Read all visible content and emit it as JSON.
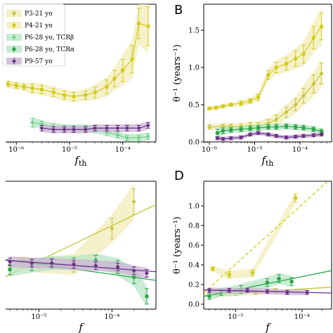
{
  "colors": {
    "P3": "#c4c436",
    "P4": "#d2cc18",
    "P6b": "#6ccf8a",
    "P6a": "#2aa64a",
    "P9": "#6a2d86",
    "band_yellow": "#f1ecb8",
    "band_green": "#b9e6c6",
    "band_purple": "#c9b3d4"
  },
  "panels": {
    "B": {
      "letter": "B"
    },
    "D": {
      "letter": "D"
    }
  },
  "legend": [
    "P3-21 yo",
    "P4-21 yo",
    "P6-28 yo, TCRβ",
    "P6-28 yo, TCRα",
    "P9-57 yo"
  ],
  "chart_data": [
    {
      "id": "A",
      "type": "line",
      "xlabel": "f_th",
      "xscale": "log",
      "xlim": [
        6.3e-07,
        0.00042
      ],
      "ylim": [
        0,
        1
      ],
      "x_tick_labels": [
        "10⁻⁶",
        "10⁻⁵",
        "10⁻⁴"
      ],
      "series": [
        {
          "name": "P4-21 yo",
          "x": [
            7e-07,
            1e-06,
            1.4e-06,
            2e-06,
            3e-06,
            5e-06,
            8e-06,
            1.2e-05,
            2e-05,
            3e-05,
            5e-05,
            7e-05,
            0.0001,
            0.00015,
            0.0002,
            0.0003
          ],
          "y": [
            0.42,
            0.41,
            0.4,
            0.39,
            0.38,
            0.36,
            0.34,
            0.33,
            0.34,
            0.36,
            0.4,
            0.46,
            0.52,
            0.6,
            0.86,
            0.84
          ],
          "err": [
            0.02,
            0.02,
            0.02,
            0.03,
            0.03,
            0.03,
            0.03,
            0.03,
            0.03,
            0.04,
            0.05,
            0.06,
            0.08,
            0.1,
            0.11,
            0.14
          ]
        },
        {
          "name": "P6-28 yo, TCRβ",
          "x": [
            2e-06,
            3e-06,
            5e-06,
            8e-06,
            1.2e-05,
            2e-05,
            3e-05,
            5e-05,
            8e-05,
            0.00012,
            0.0002,
            0.0003
          ],
          "y": [
            0.14,
            0.13,
            0.11,
            0.1,
            0.1,
            0.1,
            0.09,
            0.07,
            0.05,
            0.03,
            0.03,
            0.04
          ],
          "err": [
            0.03,
            0.02,
            0.02,
            0.02,
            0.02,
            0.02,
            0.02,
            0.02,
            0.02,
            0.02,
            0.02,
            0.02
          ]
        },
        {
          "name": "P9-57 yo",
          "x": [
            3e-06,
            5e-06,
            8e-06,
            1.2e-05,
            2e-05,
            3e-05,
            5e-05,
            8e-05,
            0.00012,
            0.0002,
            0.0003
          ],
          "y": [
            0.1,
            0.09,
            0.09,
            0.09,
            0.09,
            0.1,
            0.1,
            0.1,
            0.1,
            0.1,
            0.12
          ],
          "err": [
            0.02,
            0.02,
            0.02,
            0.02,
            0.02,
            0.02,
            0.02,
            0.02,
            0.02,
            0.02,
            0.02
          ]
        }
      ]
    },
    {
      "id": "B",
      "type": "line",
      "xlabel": "f_th",
      "ylabel": "θ⁻¹ (years⁻¹)",
      "xscale": "log",
      "xlim": [
        7.5e-07,
        0.0005
      ],
      "ylim": [
        0,
        1.85
      ],
      "x_tick_labels": [
        "10⁻⁶",
        "10⁻⁵",
        "10⁻⁴"
      ],
      "y_ticks": [
        0.0,
        0.5,
        1.0,
        1.5
      ],
      "y_tick_labels": [
        "0.0",
        "0.5",
        "1.0",
        "1.5"
      ],
      "series": [
        {
          "name": "P4-21 yo",
          "x": [
            1e-06,
            1.4e-06,
            2e-06,
            3e-06,
            5e-06,
            8e-06,
            1.2e-05,
            2e-05,
            3e-05,
            5e-05,
            8e-05,
            0.00012,
            0.0002,
            0.0003
          ],
          "y": [
            0.45,
            0.46,
            0.48,
            0.5,
            0.52,
            0.55,
            0.6,
            0.9,
            1.0,
            1.05,
            1.12,
            1.18,
            1.4,
            1.55
          ],
          "err": [
            0.02,
            0.02,
            0.02,
            0.02,
            0.03,
            0.03,
            0.04,
            0.06,
            0.07,
            0.08,
            0.1,
            0.12,
            0.15,
            0.18
          ]
        },
        {
          "name": "P3-21 yo",
          "x": [
            1e-06,
            2e-06,
            3e-06,
            5e-06,
            8e-06,
            1.2e-05,
            2e-05,
            3e-05,
            5e-05,
            8e-05,
            0.00012,
            0.0002,
            0.0003
          ],
          "y": [
            0.2,
            0.21,
            0.21,
            0.21,
            0.22,
            0.22,
            0.25,
            0.3,
            0.4,
            0.5,
            0.62,
            0.78,
            0.92
          ],
          "err": [
            0.03,
            0.03,
            0.03,
            0.03,
            0.04,
            0.04,
            0.05,
            0.06,
            0.07,
            0.08,
            0.1,
            0.12,
            0.14
          ]
        },
        {
          "name": "P6-28 yo, TCRα",
          "x": [
            1.5e-06,
            2e-06,
            3e-06,
            5e-06,
            8e-06,
            1.2e-05,
            2e-05,
            3e-05,
            5e-05,
            8e-05,
            0.00012,
            0.0002,
            0.0003
          ],
          "y": [
            0.12,
            0.15,
            0.16,
            0.17,
            0.18,
            0.19,
            0.2,
            0.2,
            0.21,
            0.2,
            0.19,
            0.17,
            0.14
          ],
          "err": [
            0.05,
            0.04,
            0.03,
            0.03,
            0.03,
            0.03,
            0.03,
            0.03,
            0.03,
            0.03,
            0.03,
            0.03,
            0.03
          ]
        },
        {
          "name": "P9-57 yo",
          "x": [
            1.5e-06,
            2e-06,
            3e-06,
            5e-06,
            8e-06,
            1.2e-05,
            2e-05,
            3e-05,
            5e-05,
            8e-05,
            0.00012,
            0.0002,
            0.0003
          ],
          "y": [
            0.05,
            0.04,
            0.05,
            0.06,
            0.1,
            0.12,
            0.1,
            0.08,
            0.06,
            0.07,
            0.08,
            0.09,
            0.1
          ],
          "err": [
            0.02,
            0.02,
            0.02,
            0.02,
            0.02,
            0.02,
            0.02,
            0.02,
            0.02,
            0.02,
            0.02,
            0.02,
            0.02
          ]
        }
      ]
    },
    {
      "id": "C",
      "type": "scatter",
      "xlabel": "f",
      "xscale": "log",
      "xlim": [
        3.5e-06,
        0.0004
      ],
      "ylim": [
        0,
        1
      ],
      "x_tick_labels": [
        "10⁻⁵",
        "10⁻⁴"
      ],
      "series": [
        {
          "name": "P3-21 yo",
          "x": [
            4e-06,
            6e-06,
            1e-05,
            3e-05,
            0.0001,
            0.0002
          ],
          "y": [
            0.34,
            0.36,
            0.34,
            0.35,
            0.63,
            0.84
          ],
          "err": [
            0.04,
            0.04,
            0.04,
            0.06,
            0.08,
            0.1
          ]
        },
        {
          "name": "P6-28 yo, TCRα",
          "x": [
            4e-06,
            8e-06,
            1.5e-05,
            3e-05,
            6e-05,
            0.00012,
            0.0002,
            0.0003
          ],
          "y": [
            0.31,
            0.34,
            0.36,
            0.36,
            0.38,
            0.33,
            0.25,
            0.1
          ],
          "err": [
            0.04,
            0.04,
            0.04,
            0.04,
            0.04,
            0.05,
            0.05,
            0.06
          ]
        },
        {
          "name": "P9-57 yo",
          "x": [
            4e-06,
            8e-06,
            1.5e-05,
            3e-05,
            6e-05,
            0.00012,
            0.0002,
            0.0003
          ],
          "y": [
            0.37,
            0.36,
            0.36,
            0.35,
            0.34,
            0.33,
            0.3,
            0.28
          ],
          "err": [
            0.03,
            0.03,
            0.03,
            0.03,
            0.03,
            0.03,
            0.03,
            0.03
          ]
        }
      ]
    },
    {
      "id": "D",
      "type": "scatter",
      "xlabel": "f",
      "ylabel": "θ⁻¹ (years⁻¹)",
      "xscale": "log",
      "xlim": [
        3.3e-06,
        0.00028
      ],
      "ylim": [
        -0.05,
        1.25
      ],
      "x_tick_labels": [
        "10⁻⁵",
        "10⁻⁴"
      ],
      "y_ticks": [
        0.0,
        0.2,
        0.4,
        0.6,
        0.8,
        1.0
      ],
      "y_tick_labels": [
        "0.0",
        "0.2",
        "0.4",
        "0.6",
        "0.8",
        "1.0"
      ],
      "series": [
        {
          "name": "P4-21 yo",
          "x": [
            4.5e-06,
            8e-06,
            1.8e-05,
            8e-05
          ],
          "y": [
            0.36,
            0.3,
            0.32,
            1.08
          ],
          "err": [
            0.02,
            0.03,
            0.03,
            0.04
          ]
        },
        {
          "name": "P3-21 yo",
          "x": [
            5e-06,
            1e-05,
            2e-05,
            4e-05
          ],
          "y": [
            0.1,
            0.11,
            0.12,
            0.14
          ],
          "err": [
            0.02,
            0.02,
            0.02,
            0.02
          ]
        },
        {
          "name": "P6-28 yo, TCRα",
          "x": [
            4e-06,
            6e-06,
            1.2e-05,
            3e-05,
            4.5e-05,
            7e-05
          ],
          "y": [
            0.08,
            0.12,
            0.15,
            0.22,
            0.26,
            0.23
          ],
          "err": [
            0.03,
            0.03,
            0.04,
            0.04,
            0.04,
            0.04
          ]
        },
        {
          "name": "P9-57 yo",
          "x": [
            4e-06,
            8e-06,
            1.5e-05,
            3e-05,
            6e-05,
            0.00012
          ],
          "y": [
            0.14,
            0.14,
            0.14,
            0.13,
            0.12,
            0.12
          ],
          "err": [
            0.02,
            0.02,
            0.02,
            0.02,
            0.02,
            0.02
          ]
        }
      ]
    }
  ]
}
